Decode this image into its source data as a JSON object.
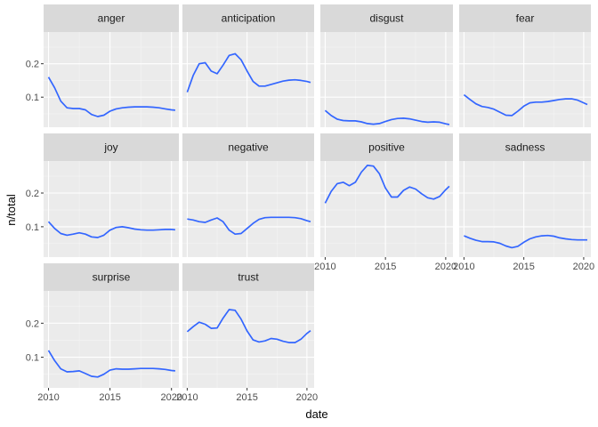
{
  "chart_data": {
    "type": "line",
    "facet_layout": "wrap",
    "xlabel": "date",
    "ylabel": "n/total",
    "xlim": [
      2009.6,
      2020.6
    ],
    "ylim": [
      0.01,
      0.295
    ],
    "x_ticks": [
      2010,
      2015,
      2020
    ],
    "x_tick_labels": [
      "2010",
      "2015",
      "2020"
    ],
    "y_ticks": [
      0.1,
      0.2
    ],
    "y_tick_labels": [
      "0.1",
      "0.2"
    ],
    "grid": true,
    "colors": {
      "line": "#3366ff",
      "panel_bg": "#ebebeb",
      "strip_bg": "#d9d9d9",
      "grid_major": "#ffffff",
      "grid_minor": "#f5f5f5",
      "tick_text": "#4d4d4d"
    },
    "facets": [
      {
        "name": "anger",
        "x": [
          2010,
          2010.5,
          2011,
          2011.5,
          2012,
          2012.5,
          2013,
          2013.5,
          2014,
          2014.5,
          2015,
          2015.5,
          2016,
          2016.5,
          2017,
          2017.5,
          2018,
          2018.5,
          2019,
          2019.5,
          2020,
          2020.3
        ],
        "y": [
          0.16,
          0.128,
          0.088,
          0.068,
          0.066,
          0.066,
          0.062,
          0.048,
          0.042,
          0.046,
          0.058,
          0.065,
          0.068,
          0.07,
          0.071,
          0.071,
          0.071,
          0.07,
          0.068,
          0.065,
          0.062,
          0.061
        ]
      },
      {
        "name": "anticipation",
        "x": [
          2010,
          2010.5,
          2011,
          2011.5,
          2012,
          2012.5,
          2013,
          2013.5,
          2014,
          2014.5,
          2015,
          2015.5,
          2016,
          2016.5,
          2017,
          2017.5,
          2018,
          2018.5,
          2019,
          2019.5,
          2020,
          2020.3
        ],
        "y": [
          0.115,
          0.165,
          0.2,
          0.203,
          0.178,
          0.17,
          0.196,
          0.225,
          0.23,
          0.212,
          0.178,
          0.147,
          0.133,
          0.133,
          0.138,
          0.143,
          0.148,
          0.151,
          0.152,
          0.15,
          0.147,
          0.144
        ]
      },
      {
        "name": "disgust",
        "x": [
          2010,
          2010.5,
          2011,
          2011.5,
          2012,
          2012.5,
          2013,
          2013.5,
          2014,
          2014.5,
          2015,
          2015.5,
          2016,
          2016.5,
          2017,
          2017.5,
          2018,
          2018.5,
          2019,
          2019.5,
          2020,
          2020.3
        ],
        "y": [
          0.06,
          0.045,
          0.034,
          0.03,
          0.029,
          0.029,
          0.026,
          0.021,
          0.019,
          0.021,
          0.027,
          0.033,
          0.036,
          0.037,
          0.035,
          0.031,
          0.027,
          0.025,
          0.026,
          0.025,
          0.02,
          0.018
        ]
      },
      {
        "name": "fear",
        "x": [
          2010,
          2010.5,
          2011,
          2011.5,
          2012,
          2012.5,
          2013,
          2013.5,
          2014,
          2014.5,
          2015,
          2015.5,
          2016,
          2016.5,
          2017,
          2017.5,
          2018,
          2018.5,
          2019,
          2019.5,
          2020,
          2020.3
        ],
        "y": [
          0.107,
          0.093,
          0.08,
          0.072,
          0.069,
          0.064,
          0.055,
          0.046,
          0.045,
          0.058,
          0.073,
          0.083,
          0.085,
          0.085,
          0.087,
          0.09,
          0.093,
          0.095,
          0.095,
          0.091,
          0.083,
          0.078
        ]
      },
      {
        "name": "joy",
        "x": [
          2010,
          2010.5,
          2011,
          2011.5,
          2012,
          2012.5,
          2013,
          2013.5,
          2014,
          2014.5,
          2015,
          2015.5,
          2016,
          2016.5,
          2017,
          2017.5,
          2018,
          2018.5,
          2019,
          2019.5,
          2020,
          2020.3
        ],
        "y": [
          0.115,
          0.095,
          0.08,
          0.075,
          0.078,
          0.082,
          0.078,
          0.07,
          0.068,
          0.075,
          0.09,
          0.098,
          0.1,
          0.097,
          0.093,
          0.091,
          0.09,
          0.09,
          0.091,
          0.092,
          0.092,
          0.091
        ]
      },
      {
        "name": "negative",
        "x": [
          2010,
          2010.5,
          2011,
          2011.5,
          2012,
          2012.5,
          2013,
          2013.5,
          2014,
          2014.5,
          2015,
          2015.5,
          2016,
          2016.5,
          2017,
          2017.5,
          2018,
          2018.5,
          2019,
          2019.5,
          2020,
          2020.3
        ],
        "y": [
          0.123,
          0.12,
          0.115,
          0.113,
          0.12,
          0.126,
          0.115,
          0.09,
          0.078,
          0.08,
          0.095,
          0.11,
          0.122,
          0.127,
          0.128,
          0.128,
          0.128,
          0.128,
          0.127,
          0.124,
          0.118,
          0.115
        ]
      },
      {
        "name": "positive",
        "x": [
          2010,
          2010.5,
          2011,
          2011.5,
          2012,
          2012.5,
          2013,
          2013.5,
          2014,
          2014.5,
          2015,
          2015.5,
          2016,
          2016.5,
          2017,
          2017.5,
          2018,
          2018.5,
          2019,
          2019.5,
          2020,
          2020.3
        ],
        "y": [
          0.17,
          0.205,
          0.228,
          0.232,
          0.222,
          0.232,
          0.262,
          0.282,
          0.28,
          0.257,
          0.215,
          0.188,
          0.188,
          0.208,
          0.218,
          0.212,
          0.198,
          0.186,
          0.182,
          0.19,
          0.21,
          0.22
        ]
      },
      {
        "name": "sadness",
        "x": [
          2010,
          2010.5,
          2011,
          2011.5,
          2012,
          2012.5,
          2013,
          2013.5,
          2014,
          2014.5,
          2015,
          2015.5,
          2016,
          2016.5,
          2017,
          2017.5,
          2018,
          2018.5,
          2019,
          2019.5,
          2020,
          2020.3
        ],
        "y": [
          0.073,
          0.066,
          0.06,
          0.056,
          0.056,
          0.055,
          0.051,
          0.043,
          0.038,
          0.042,
          0.054,
          0.064,
          0.07,
          0.073,
          0.074,
          0.072,
          0.067,
          0.064,
          0.062,
          0.061,
          0.061,
          0.061
        ]
      },
      {
        "name": "surprise",
        "x": [
          2010,
          2010.5,
          2011,
          2011.5,
          2012,
          2012.5,
          2013,
          2013.5,
          2014,
          2014.5,
          2015,
          2015.5,
          2016,
          2016.5,
          2017,
          2017.5,
          2018,
          2018.5,
          2019,
          2019.5,
          2020,
          2020.3
        ],
        "y": [
          0.12,
          0.09,
          0.066,
          0.057,
          0.058,
          0.06,
          0.052,
          0.044,
          0.042,
          0.05,
          0.062,
          0.066,
          0.065,
          0.065,
          0.066,
          0.067,
          0.067,
          0.067,
          0.066,
          0.064,
          0.061,
          0.06
        ]
      },
      {
        "name": "trust",
        "x": [
          2010,
          2010.5,
          2011,
          2011.5,
          2012,
          2012.5,
          2013,
          2013.5,
          2014,
          2014.5,
          2015,
          2015.5,
          2016,
          2016.5,
          2017,
          2017.5,
          2018,
          2018.5,
          2019,
          2019.5,
          2020,
          2020.3
        ],
        "y": [
          0.175,
          0.19,
          0.203,
          0.197,
          0.185,
          0.186,
          0.215,
          0.24,
          0.238,
          0.212,
          0.177,
          0.151,
          0.145,
          0.148,
          0.155,
          0.153,
          0.147,
          0.143,
          0.143,
          0.153,
          0.17,
          0.178
        ]
      }
    ]
  }
}
